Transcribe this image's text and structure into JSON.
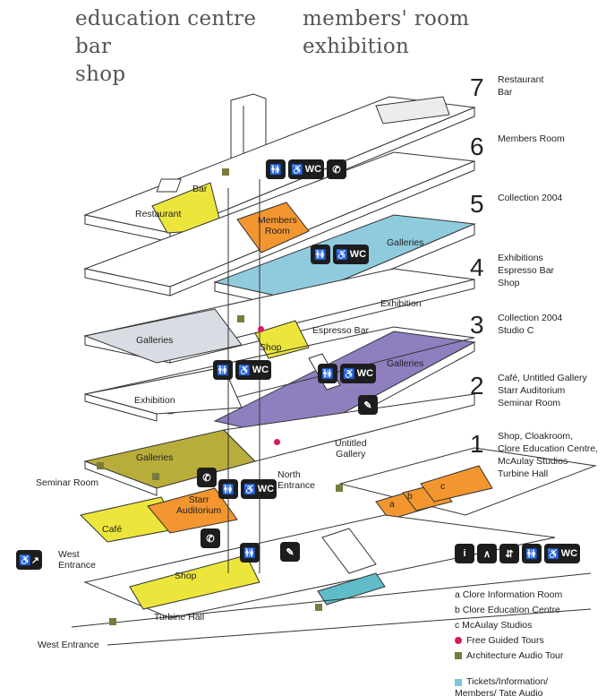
{
  "header": {
    "left_lines": [
      "education centre",
      "bar",
      "shop"
    ],
    "right_lines": [
      "members' room",
      "exhibition"
    ]
  },
  "levels": [
    {
      "number": "7",
      "desc": "Restaurant\nBar"
    },
    {
      "number": "6",
      "desc": "Members Room"
    },
    {
      "number": "5",
      "desc": "Collection 2004"
    },
    {
      "number": "4",
      "desc": "Exhibitions\nEspresso Bar\nShop"
    },
    {
      "number": "3",
      "desc": "Collection 2004\nStudio C"
    },
    {
      "number": "2",
      "desc": "Café, Untitled Gallery\nStarr Auditorium\nSeminar Room"
    },
    {
      "number": "1",
      "desc": "Shop, Cloakroom,\nClore Education Centre,\nMcAulay Studios\nTurbine Hall"
    }
  ],
  "map_labels": {
    "bar": "Bar",
    "restaurant": "Restaurant",
    "members_room": "Members\nRoom",
    "galleries_5": "Galleries",
    "exhibition_4": "Exhibition",
    "espresso_bar": "Espresso Bar",
    "shop_4": "Shop",
    "galleries_4": "Galleries",
    "galleries_3": "Galleries",
    "exhibition_2": "Exhibition",
    "untitled_gallery": "Untitled\nGallery",
    "north_entrance": "North\nEntrance",
    "galleries_2": "Galleries",
    "seminar_room": "Seminar Room",
    "starr_auditorium": "Starr\nAuditorium",
    "cafe": "Café",
    "west_entrance_upper": "West\nEntrance",
    "shop_1": "Shop",
    "turbine_hall": "Turbine Hall",
    "west_entrance_lower": "West Entrance",
    "room_a": "a",
    "room_b": "b",
    "room_c": "c"
  },
  "icon_text": {
    "wc": "WC"
  },
  "legend": [
    {
      "text": "a  Clore Information Room",
      "marker": "none"
    },
    {
      "text": "b  Clore Education Centre",
      "marker": "none"
    },
    {
      "text": "c  McAulay Studios",
      "marker": "none"
    },
    {
      "text": "Free Guided Tours",
      "marker": "dot",
      "color": "#d61a5f"
    },
    {
      "text": "Architecture Audio Tour",
      "marker": "square",
      "color": "#7a7a3c"
    },
    {
      "text": "Tickets/Information/\nMembers/ Tate Audio",
      "marker": "square",
      "color": "#7fc6d6"
    }
  ],
  "colors": {
    "yellow": "#ece63c",
    "orange": "#f3962f",
    "blue": "#8fcbdc",
    "purple": "#8f7fbf",
    "grey": "#d8dce3",
    "olive": "#b8ad3a",
    "tickets": "#5fbcc8"
  }
}
